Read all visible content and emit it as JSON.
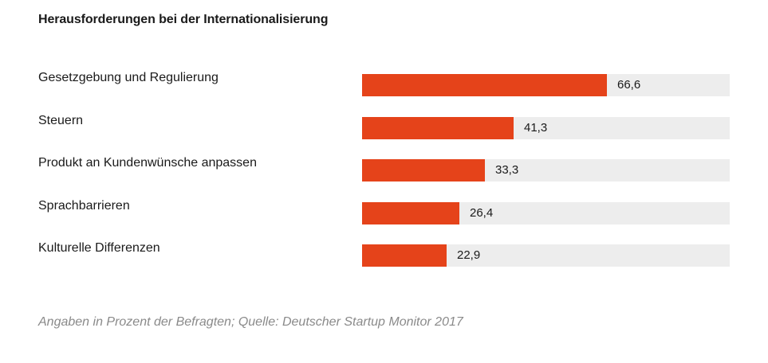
{
  "chart_data": {
    "type": "bar",
    "orientation": "horizontal",
    "title": "Herausforderungen bei der Internationalisierung",
    "categories": [
      "Gesetzgebung und Regulierung",
      "Steuern",
      "Produkt an Kundenwünsche anpassen",
      "Sprachbarrieren",
      "Kulturelle Differenzen"
    ],
    "values": [
      66.6,
      41.3,
      33.3,
      26.4,
      22.9
    ],
    "value_labels": [
      "66,6",
      "41,3",
      "33,3",
      "26,4",
      "22,9"
    ],
    "xlim": [
      0,
      100
    ],
    "grid": false,
    "legend": "none",
    "note": "Angaben in Prozent der Befragten; Quelle: Deutscher Startup Monitor 2017"
  },
  "colors": {
    "bar": "#e5431a",
    "track": "#ededed",
    "note": "#8a8a8a"
  }
}
